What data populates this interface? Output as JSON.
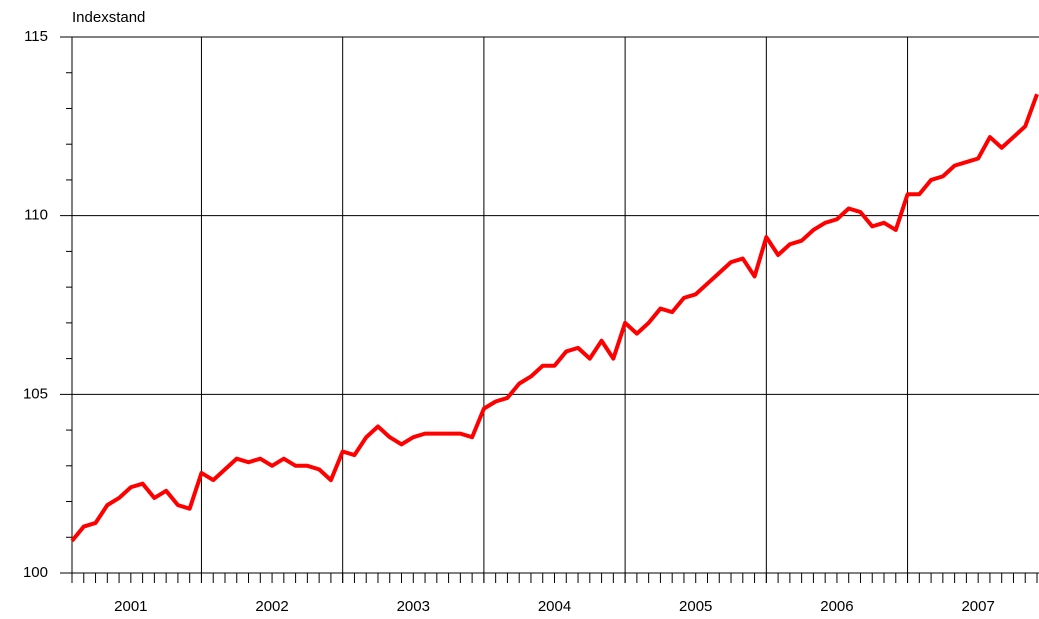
{
  "chart_data": {
    "type": "line",
    "y_axis_label": "Indexstand",
    "categories": [
      null,
      null,
      null,
      null,
      null,
      "2001",
      null,
      null,
      null,
      null,
      null,
      null,
      null,
      null,
      null,
      null,
      null,
      "2002",
      null,
      null,
      null,
      null,
      null,
      null,
      null,
      null,
      null,
      null,
      null,
      "2003",
      null,
      null,
      null,
      null,
      null,
      null,
      null,
      null,
      null,
      null,
      null,
      "2004",
      null,
      null,
      null,
      null,
      null,
      null,
      null,
      null,
      null,
      null,
      null,
      "2005",
      null,
      null,
      null,
      null,
      null,
      null,
      null,
      null,
      null,
      null,
      null,
      "2006",
      null,
      null,
      null,
      null,
      null,
      null,
      null,
      null,
      null,
      null,
      null,
      "2007",
      null,
      null,
      null,
      null,
      null
    ],
    "series": [
      {
        "color": "#ff0000",
        "values": [
          100.9,
          101.3,
          101.4,
          101.9,
          102.1,
          102.4,
          102.5,
          102.1,
          102.3,
          101.9,
          101.8,
          102.8,
          102.6,
          102.9,
          103.2,
          103.1,
          103.2,
          103.0,
          103.2,
          103.0,
          103.0,
          102.9,
          102.6,
          103.4,
          103.3,
          103.8,
          104.1,
          103.8,
          103.6,
          103.8,
          103.9,
          103.9,
          103.9,
          103.9,
          103.8,
          104.6,
          104.8,
          104.9,
          105.3,
          105.5,
          105.8,
          105.8,
          106.2,
          106.3,
          106.0,
          106.5,
          106.0,
          107.0,
          106.7,
          107.0,
          107.4,
          107.3,
          107.7,
          107.8,
          108.1,
          108.4,
          108.7,
          108.8,
          108.3,
          109.4,
          108.9,
          109.2,
          109.3,
          109.6,
          109.8,
          109.9,
          110.2,
          110.1,
          109.7,
          109.8,
          109.6,
          110.6,
          110.6,
          111.0,
          111.1,
          111.4,
          111.5,
          111.6,
          112.2,
          111.9,
          112.2,
          112.5,
          113.4
        ]
      }
    ],
    "ylim": [
      100,
      115
    ],
    "yticks": [
      100,
      105,
      110,
      115
    ],
    "grid": true
  }
}
